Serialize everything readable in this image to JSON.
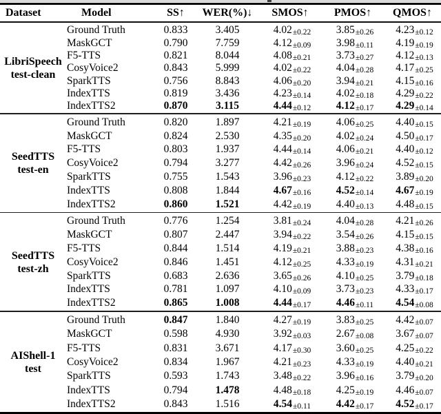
{
  "table": {
    "columns": [
      "Dataset",
      "Model",
      "SS↑",
      "WER(%)↓",
      "SMOS↑",
      "PMOS↑",
      "QMOS↑"
    ],
    "groups": [
      {
        "dataset_line1": "LibriSpeech",
        "dataset_line2": "test-clean",
        "rows": [
          {
            "model": "Ground Truth",
            "ss": "0.833",
            "wer": "3.405",
            "smos": "4.02",
            "smos_pm": "±0.22",
            "pmos": "3.85",
            "pmos_pm": "±0.26",
            "qmos": "4.23",
            "qmos_pm": "±0.12",
            "bold": []
          },
          {
            "model": "MaskGCT",
            "ss": "0.790",
            "wer": "7.759",
            "smos": "4.12",
            "smos_pm": "±0.09",
            "pmos": "3.98",
            "pmos_pm": "±0.11",
            "qmos": "4.19",
            "qmos_pm": "±0.19",
            "bold": []
          },
          {
            "model": "F5-TTS",
            "ss": "0.821",
            "wer": "8.044",
            "smos": "4.08",
            "smos_pm": "±0.21",
            "pmos": "3.73",
            "pmos_pm": "±0.27",
            "qmos": "4.12",
            "qmos_pm": "±0.13",
            "bold": []
          },
          {
            "model": "CosyVoice2",
            "ss": "0.843",
            "wer": "5.999",
            "smos": "4.02",
            "smos_pm": "±0.22",
            "pmos": "4.04",
            "pmos_pm": "±0.28",
            "qmos": "4.17",
            "qmos_pm": "±0.25",
            "bold": []
          },
          {
            "model": "SparkTTS",
            "ss": "0.756",
            "wer": "8.843",
            "smos": "4.06",
            "smos_pm": "±0.20",
            "pmos": "3.94",
            "pmos_pm": "±0.21",
            "qmos": "4.15",
            "qmos_pm": "±0.16",
            "bold": []
          },
          {
            "model": "IndexTTS",
            "ss": "0.819",
            "wer": "3.436",
            "smos": "4.23",
            "smos_pm": "±0.14",
            "pmos": "4.02",
            "pmos_pm": "±0.18",
            "qmos": "4.29",
            "qmos_pm": "±0.22",
            "bold": []
          },
          {
            "model": "IndexTTS2",
            "ss": "0.870",
            "wer": "3.115",
            "smos": "4.44",
            "smos_pm": "±0.12",
            "pmos": "4.12",
            "pmos_pm": "±0.17",
            "qmos": "4.29",
            "qmos_pm": "±0.14",
            "bold": [
              "ss",
              "wer",
              "smos",
              "pmos",
              "qmos"
            ]
          }
        ]
      },
      {
        "dataset_line1": "SeedTTS",
        "dataset_line2": "test-en",
        "rows": [
          {
            "model": "Ground Truth",
            "ss": "0.820",
            "wer": "1.897",
            "smos": "4.21",
            "smos_pm": "±0.19",
            "pmos": "4.06",
            "pmos_pm": "±0.25",
            "qmos": "4.40",
            "qmos_pm": "±0.15",
            "bold": []
          },
          {
            "model": "MaskGCT",
            "ss": "0.824",
            "wer": "2.530",
            "smos": "4.35",
            "smos_pm": "±0.20",
            "pmos": "4.02",
            "pmos_pm": "±0.24",
            "qmos": "4.50",
            "qmos_pm": "±0.17",
            "bold": []
          },
          {
            "model": "F5-TTS",
            "ss": "0.803",
            "wer": "1.937",
            "smos": "4.44",
            "smos_pm": "±0.14",
            "pmos": "4.06",
            "pmos_pm": "±0.21",
            "qmos": "4.40",
            "qmos_pm": "±0.12",
            "bold": []
          },
          {
            "model": "CosyVoice2",
            "ss": "0.794",
            "wer": "3.277",
            "smos": "4.42",
            "smos_pm": "±0.26",
            "pmos": "3.96",
            "pmos_pm": "±0.24",
            "qmos": "4.52",
            "qmos_pm": "±0.15",
            "bold": []
          },
          {
            "model": "SparkTTS",
            "ss": "0.755",
            "wer": "1.543",
            "smos": "3.96",
            "smos_pm": "±0.23",
            "pmos": "4.12",
            "pmos_pm": "±0.22",
            "qmos": "3.89",
            "qmos_pm": "±0.20",
            "bold": []
          },
          {
            "model": "IndexTTS",
            "ss": "0.808",
            "wer": "1.844",
            "smos": "4.67",
            "smos_pm": "±0.16",
            "pmos": "4.52",
            "pmos_pm": "±0.14",
            "qmos": "4.67",
            "qmos_pm": "±0.19",
            "bold": [
              "smos",
              "pmos",
              "qmos"
            ]
          },
          {
            "model": "IndexTTS2",
            "ss": "0.860",
            "wer": "1.521",
            "smos": "4.42",
            "smos_pm": "±0.19",
            "pmos": "4.40",
            "pmos_pm": "±0.13",
            "qmos": "4.48",
            "qmos_pm": "±0.15",
            "bold": [
              "ss",
              "wer"
            ]
          }
        ]
      },
      {
        "dataset_line1": "SeedTTS",
        "dataset_line2": "test-zh",
        "rows": [
          {
            "model": "Ground Truth",
            "ss": "0.776",
            "wer": "1.254",
            "smos": "3.81",
            "smos_pm": "±0.24",
            "pmos": "4.04",
            "pmos_pm": "±0.28",
            "qmos": "4.21",
            "qmos_pm": "±0.26",
            "bold": []
          },
          {
            "model": "MaskGCT",
            "ss": "0.807",
            "wer": "2.447",
            "smos": "3.94",
            "smos_pm": "±0.22",
            "pmos": "3.54",
            "pmos_pm": "±0.26",
            "qmos": "4.15",
            "qmos_pm": "±0.15",
            "bold": []
          },
          {
            "model": "F5-TTS",
            "ss": "0.844",
            "wer": "1.514",
            "smos": "4.19",
            "smos_pm": "±0.21",
            "pmos": "3.88",
            "pmos_pm": "±0.23",
            "qmos": "4.38",
            "qmos_pm": "±0.16",
            "bold": []
          },
          {
            "model": "CosyVoice2",
            "ss": "0.846",
            "wer": "1.451",
            "smos": "4.12",
            "smos_pm": "±0.25",
            "pmos": "4.33",
            "pmos_pm": "±0.19",
            "qmos": "4.31",
            "qmos_pm": "±0.21",
            "bold": []
          },
          {
            "model": "SparkTTS",
            "ss": "0.683",
            "wer": "2.636",
            "smos": "3.65",
            "smos_pm": "±0.26",
            "pmos": "4.10",
            "pmos_pm": "±0.25",
            "qmos": "3.79",
            "qmos_pm": "±0.18",
            "bold": []
          },
          {
            "model": "IndexTTS",
            "ss": "0.781",
            "wer": "1.097",
            "smos": "4.10",
            "smos_pm": "±0.09",
            "pmos": "3.73",
            "pmos_pm": "±0.23",
            "qmos": "4.33",
            "qmos_pm": "±0.17",
            "bold": []
          },
          {
            "model": "IndexTTS2",
            "ss": "0.865",
            "wer": "1.008",
            "smos": "4.44",
            "smos_pm": "±0.17",
            "pmos": "4.46",
            "pmos_pm": "±0.11",
            "qmos": "4.54",
            "qmos_pm": "±0.08",
            "bold": [
              "ss",
              "wer",
              "smos",
              "pmos",
              "qmos"
            ]
          }
        ]
      },
      {
        "dataset_line1": "AIShell-1",
        "dataset_line2": "test",
        "rows": [
          {
            "model": "Ground Truth",
            "ss": "0.847",
            "wer": "1.840",
            "smos": "4.27",
            "smos_pm": "±0.19",
            "pmos": "3.83",
            "pmos_pm": "±0.25",
            "qmos": "4.42",
            "qmos_pm": "±0.07",
            "bold": [
              "ss"
            ]
          },
          {
            "model": "MaskGCT",
            "ss": "0.598",
            "wer": "4.930",
            "smos": "3.92",
            "smos_pm": "±0.03",
            "pmos": "2.67",
            "pmos_pm": "±0.08",
            "qmos": "3.67",
            "qmos_pm": "±0.07",
            "bold": []
          },
          {
            "model": "F5-TTS",
            "ss": "0.831",
            "wer": "3.671",
            "smos": "4.17",
            "smos_pm": "±0.30",
            "pmos": "3.60",
            "pmos_pm": "±0.25",
            "qmos": "4.25",
            "qmos_pm": "±0.22",
            "bold": []
          },
          {
            "model": "CosyVoice2",
            "ss": "0.834",
            "wer": "1.967",
            "smos": "4.21",
            "smos_pm": "±0.23",
            "pmos": "4.33",
            "pmos_pm": "±0.19",
            "qmos": "4.40",
            "qmos_pm": "±0.21",
            "bold": []
          },
          {
            "model": "SparkTTS",
            "ss": "0.593",
            "wer": "1.743",
            "smos": "3.48",
            "smos_pm": "±0.22",
            "pmos": "3.96",
            "pmos_pm": "±0.16",
            "qmos": "3.79",
            "qmos_pm": "±0.20",
            "bold": []
          },
          {
            "model": "IndexTTS",
            "ss": "0.794",
            "wer": "1.478",
            "smos": "4.48",
            "smos_pm": "±0.18",
            "pmos": "4.25",
            "pmos_pm": "±0.19",
            "qmos": "4.46",
            "qmos_pm": "±0.07",
            "bold": [
              "wer"
            ]
          },
          {
            "model": "IndexTTS2",
            "ss": "0.843",
            "wer": "1.516",
            "smos": "4.54",
            "smos_pm": "±0.11",
            "pmos": "4.42",
            "pmos_pm": "±0.17",
            "qmos": "4.52",
            "qmos_pm": "±0.17",
            "bold": [
              "smos",
              "pmos",
              "qmos"
            ]
          }
        ]
      }
    ]
  }
}
